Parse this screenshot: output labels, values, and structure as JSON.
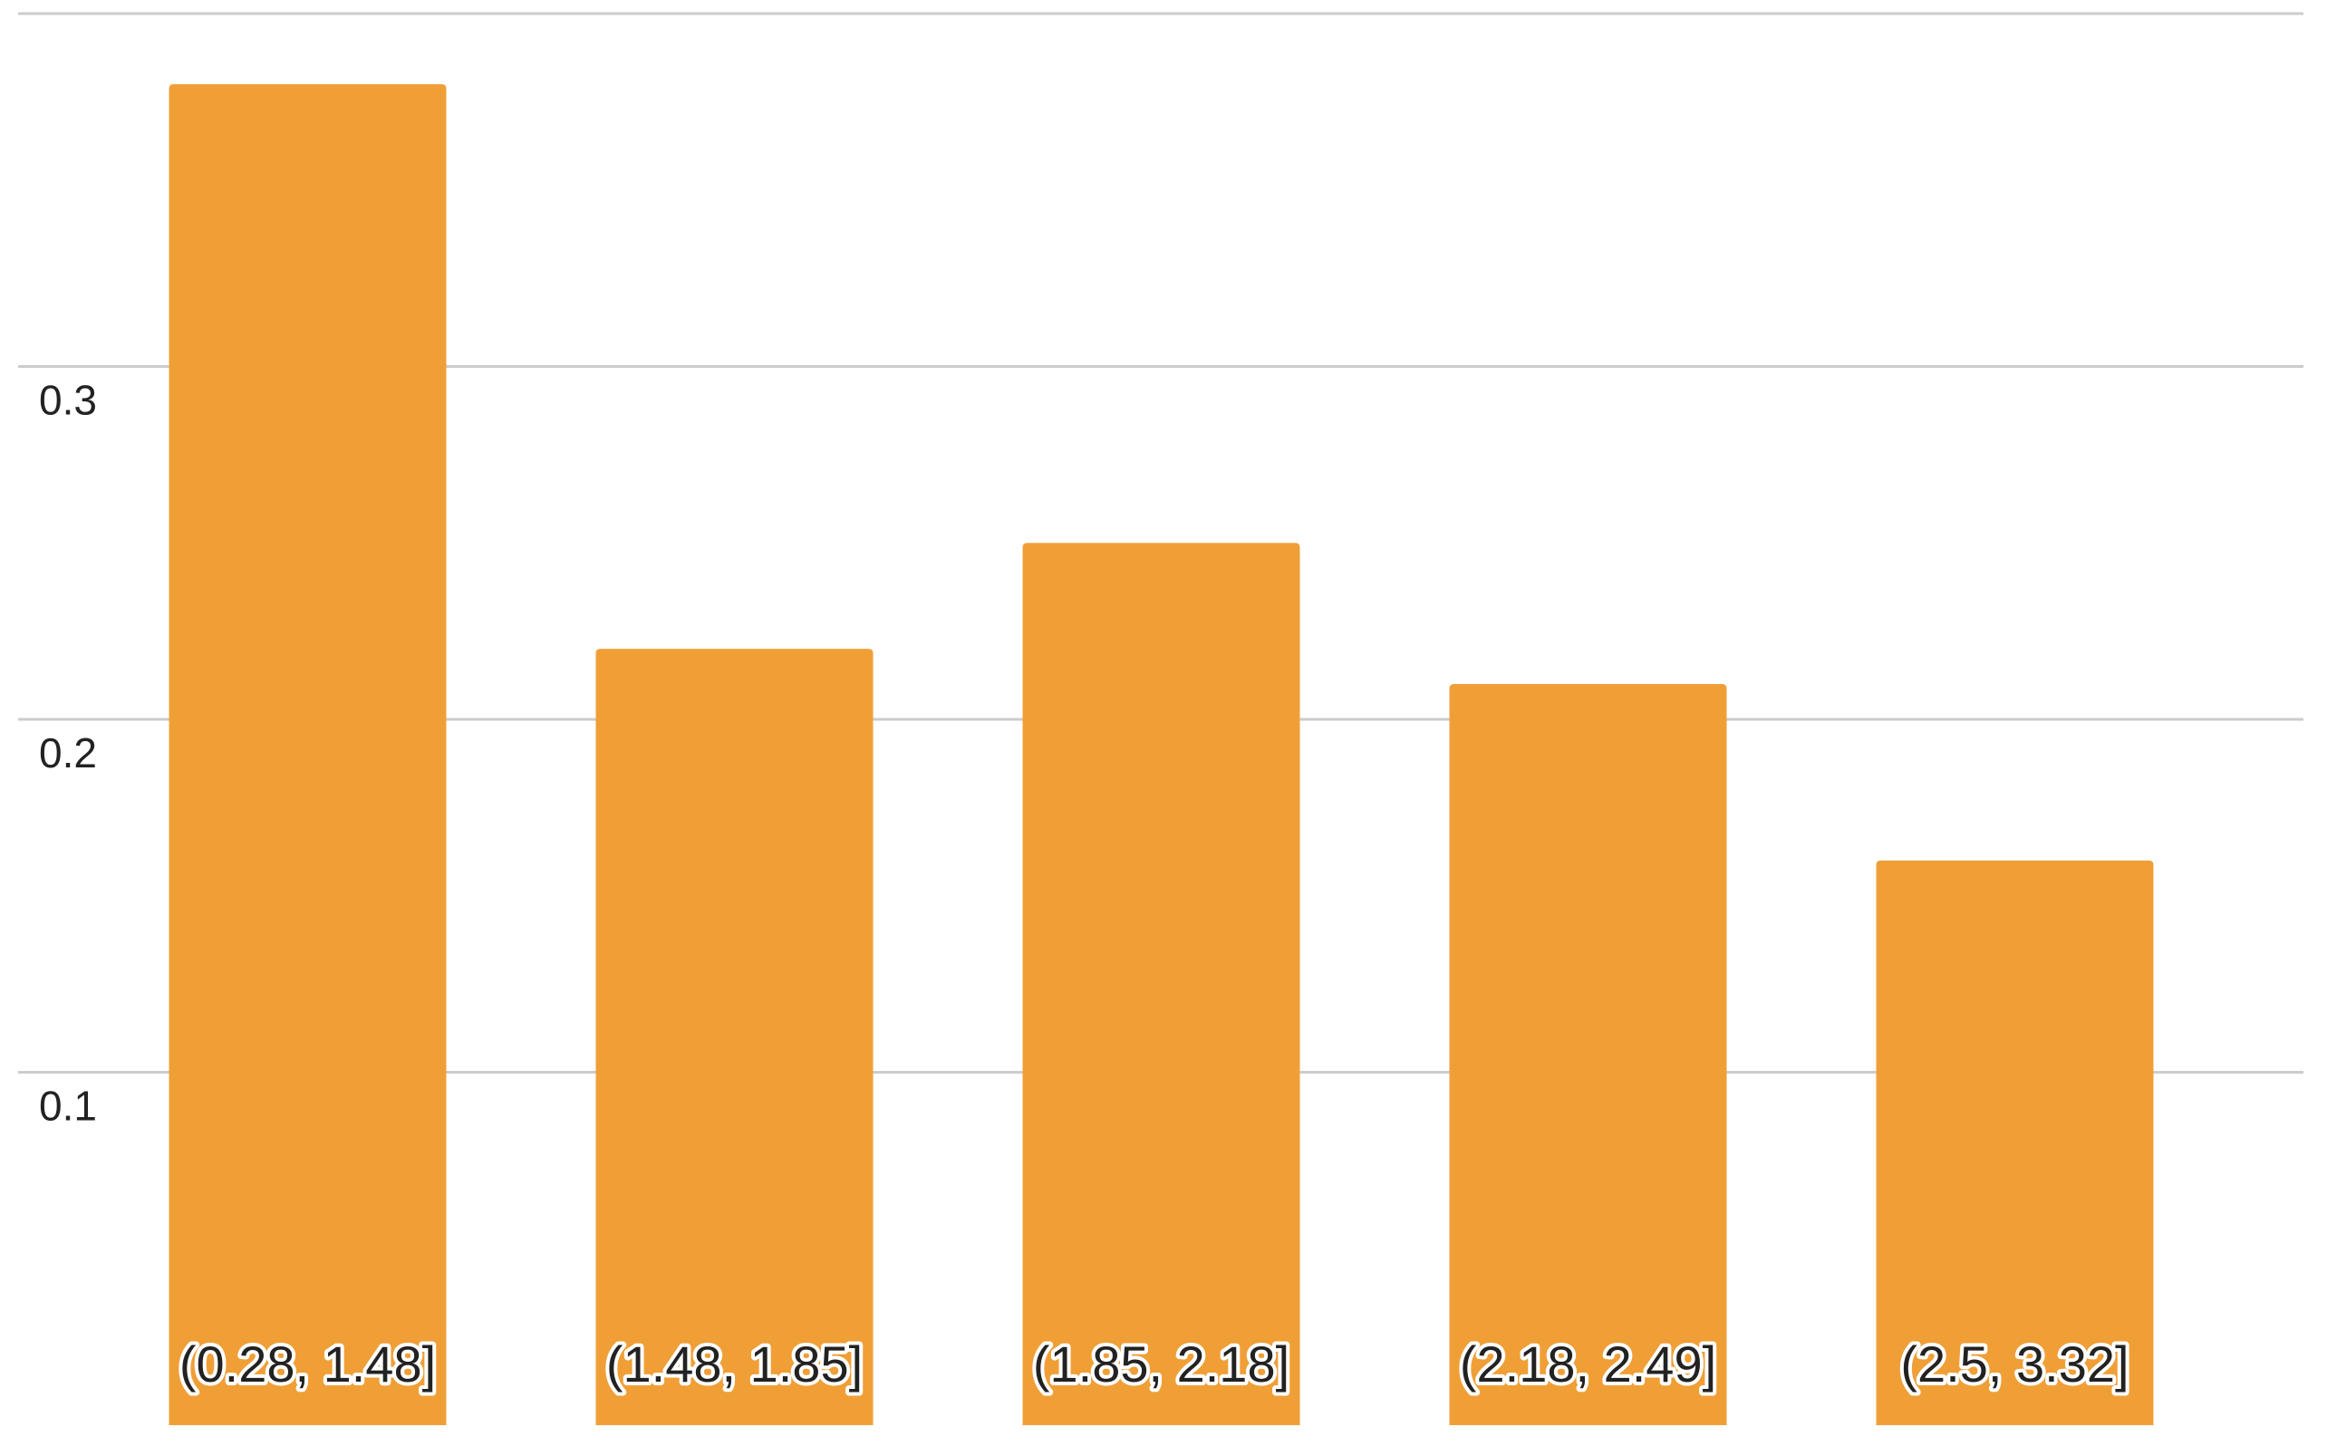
{
  "chart_data": {
    "type": "bar",
    "categories": [
      "(0.28, 1.48]",
      "(1.48, 1.85]",
      "(1.85, 2.18]",
      "(2.18, 2.49]",
      "(2.5, 3.32]"
    ],
    "values": [
      0.38,
      0.22,
      0.25,
      0.21,
      0.16
    ],
    "color": "#f09f37",
    "ylim": [
      0,
      0.4
    ],
    "yticks": [
      0.1,
      0.2,
      0.3
    ],
    "grid": true
  }
}
